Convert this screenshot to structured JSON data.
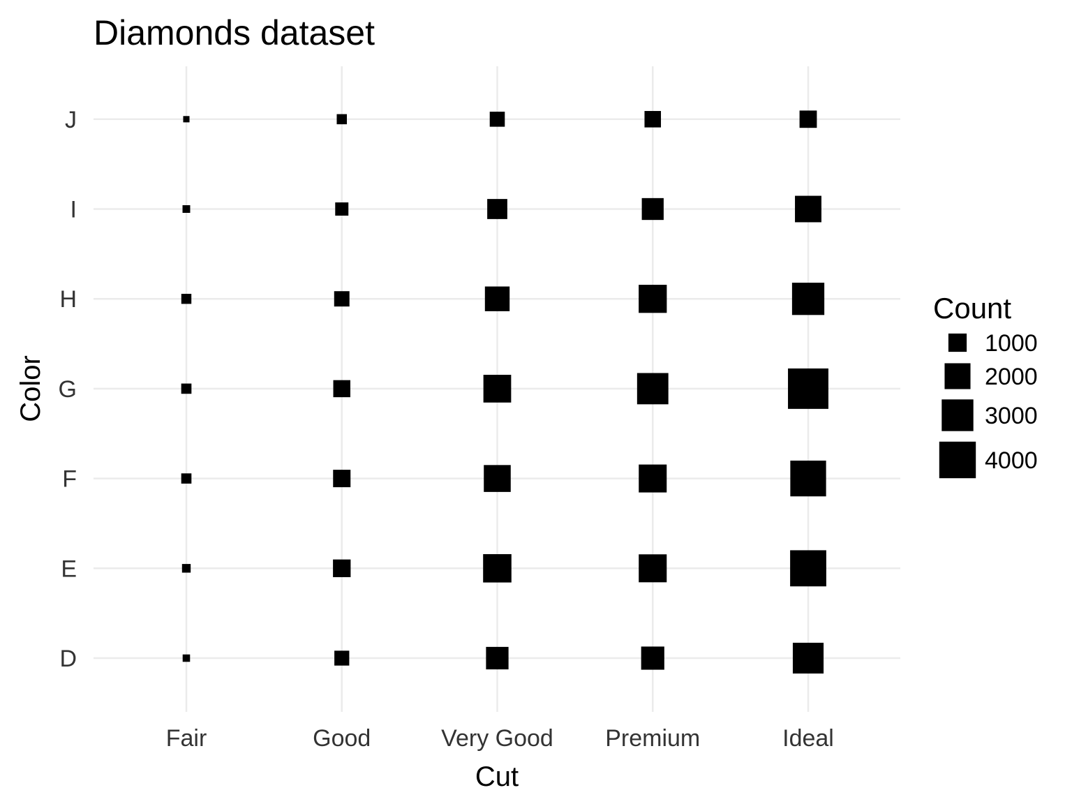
{
  "chart_data": {
    "type": "scatter",
    "title": "Diamonds dataset",
    "xlabel": "Cut",
    "ylabel": "Color",
    "x_categories": [
      "Fair",
      "Good",
      "Very Good",
      "Premium",
      "Ideal"
    ],
    "y_categories": [
      "D",
      "E",
      "F",
      "G",
      "H",
      "I",
      "J"
    ],
    "marker": "square",
    "size_variable": "Count",
    "points": [
      {
        "cut": "Fair",
        "color": "D",
        "count": 163
      },
      {
        "cut": "Fair",
        "color": "E",
        "count": 224
      },
      {
        "cut": "Fair",
        "color": "F",
        "count": 312
      },
      {
        "cut": "Fair",
        "color": "G",
        "count": 314
      },
      {
        "cut": "Fair",
        "color": "H",
        "count": 303
      },
      {
        "cut": "Fair",
        "color": "I",
        "count": 175
      },
      {
        "cut": "Fair",
        "color": "J",
        "count": 119
      },
      {
        "cut": "Good",
        "color": "D",
        "count": 662
      },
      {
        "cut": "Good",
        "color": "E",
        "count": 933
      },
      {
        "cut": "Good",
        "color": "F",
        "count": 909
      },
      {
        "cut": "Good",
        "color": "G",
        "count": 871
      },
      {
        "cut": "Good",
        "color": "H",
        "count": 702
      },
      {
        "cut": "Good",
        "color": "I",
        "count": 522
      },
      {
        "cut": "Good",
        "color": "J",
        "count": 307
      },
      {
        "cut": "Very Good",
        "color": "D",
        "count": 1513
      },
      {
        "cut": "Very Good",
        "color": "E",
        "count": 2400
      },
      {
        "cut": "Very Good",
        "color": "F",
        "count": 2164
      },
      {
        "cut": "Very Good",
        "color": "G",
        "count": 2299
      },
      {
        "cut": "Very Good",
        "color": "H",
        "count": 1824
      },
      {
        "cut": "Very Good",
        "color": "I",
        "count": 1204
      },
      {
        "cut": "Very Good",
        "color": "J",
        "count": 678
      },
      {
        "cut": "Premium",
        "color": "D",
        "count": 1603
      },
      {
        "cut": "Premium",
        "color": "E",
        "count": 2337
      },
      {
        "cut": "Premium",
        "color": "F",
        "count": 2331
      },
      {
        "cut": "Premium",
        "color": "G",
        "count": 2924
      },
      {
        "cut": "Premium",
        "color": "H",
        "count": 2360
      },
      {
        "cut": "Premium",
        "color": "I",
        "count": 1428
      },
      {
        "cut": "Premium",
        "color": "J",
        "count": 808
      },
      {
        "cut": "Ideal",
        "color": "D",
        "count": 2834
      },
      {
        "cut": "Ideal",
        "color": "E",
        "count": 3903
      },
      {
        "cut": "Ideal",
        "color": "F",
        "count": 3826
      },
      {
        "cut": "Ideal",
        "color": "G",
        "count": 4884
      },
      {
        "cut": "Ideal",
        "color": "H",
        "count": 3115
      },
      {
        "cut": "Ideal",
        "color": "I",
        "count": 2093
      },
      {
        "cut": "Ideal",
        "color": "J",
        "count": 896
      }
    ],
    "legend": {
      "title": "Count",
      "position": "right",
      "entries": [
        {
          "label": "1000",
          "value": 1000
        },
        {
          "label": "2000",
          "value": 2000
        },
        {
          "label": "3000",
          "value": 3000
        },
        {
          "label": "4000",
          "value": 4000
        }
      ]
    },
    "grid": true,
    "colors": {
      "marker": "#000000",
      "grid": "#ebebeb",
      "tick_text": "#333333",
      "background": "#ffffff"
    }
  }
}
